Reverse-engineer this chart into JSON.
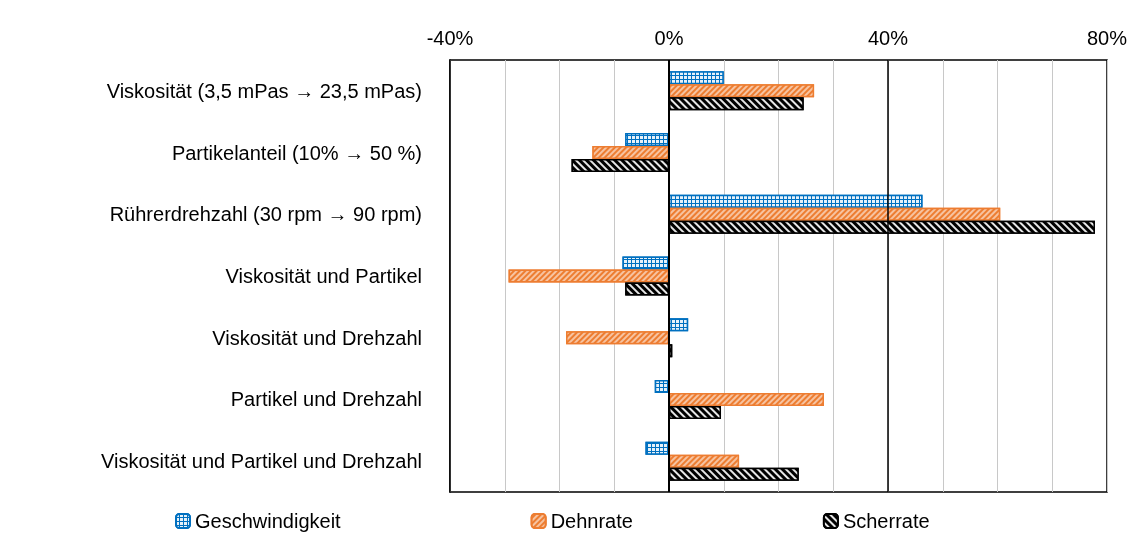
{
  "chart_data": {
    "type": "bar",
    "orientation": "horizontal",
    "categories": [
      "Viskosität (3,5 mPas → 23,5 mPas)",
      "Partikelanteil (10% → 50 %)",
      "Rührerdrehzahl (30 rpm → 90 rpm)",
      "Viskosität und Partikel",
      "Viskosität und Drehzahl",
      "Partikel und Drehzahl",
      "Viskosität und Partikel und Drehzahl"
    ],
    "series": [
      {
        "name": "Geschwindigkeit",
        "color": "#0070c0",
        "values": [
          10,
          -8,
          46.3,
          -8.5,
          3.5,
          -2.6,
          -4.3
        ]
      },
      {
        "name": "Dehnrate",
        "color": "#ed7d31",
        "values": [
          26.5,
          -14,
          60.5,
          -29.3,
          -18.8,
          28.3,
          12.8
        ]
      },
      {
        "name": "Scherrate",
        "color": "#000000",
        "values": [
          24.6,
          -17.8,
          77.8,
          -8,
          0.6,
          9.5,
          23.7
        ]
      }
    ],
    "xlim": [
      -40,
      80
    ],
    "xticks": [
      {
        "value": -40,
        "label": "-40%"
      },
      {
        "value": -30,
        "label": null
      },
      {
        "value": -20,
        "label": null
      },
      {
        "value": -10,
        "label": null
      },
      {
        "value": 0,
        "label": "0%"
      },
      {
        "value": 10,
        "label": null
      },
      {
        "value": 20,
        "label": null
      },
      {
        "value": 30,
        "label": null
      },
      {
        "value": 40,
        "label": "40%"
      },
      {
        "value": 50,
        "label": null
      },
      {
        "value": 60,
        "label": null
      },
      {
        "value": 70,
        "label": null
      },
      {
        "value": 80,
        "label": "80%"
      }
    ],
    "ref_lines": [
      {
        "axis": "x",
        "value": 40,
        "color": "#000000"
      }
    ],
    "grid": "x",
    "legend": "bottom"
  }
}
